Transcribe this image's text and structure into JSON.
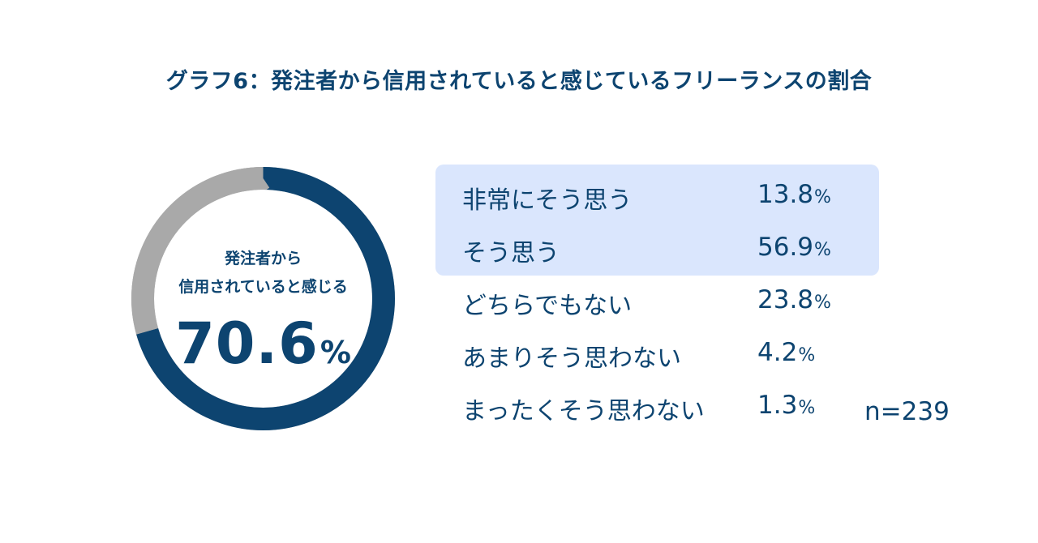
{
  "title": "グラフ6：発注者から信用されていると感じているフリーランスの割合",
  "center": {
    "line1": "発注者から",
    "line2": "信用されていると感じる",
    "value": "70.6",
    "unit": "%"
  },
  "n_label": "n=239",
  "colors": {
    "primary": "#0d4470",
    "gray": "#a9a9a9",
    "highlight": "#dae6fd"
  },
  "legend": [
    {
      "label": "非常にそう思う",
      "value": "13.8",
      "unit": "%"
    },
    {
      "label": "そう思う",
      "value": "56.9",
      "unit": "%"
    },
    {
      "label": "どちらでもない",
      "value": "23.8",
      "unit": "%"
    },
    {
      "label": "あまりそう思わない",
      "value": "4.2",
      "unit": "%"
    },
    {
      "label": "まったくそう思わない",
      "value": "1.3",
      "unit": "%"
    }
  ],
  "chart_data": {
    "type": "pie",
    "title": "グラフ6：発注者から信用されていると感じているフリーランスの割合",
    "categories": [
      "非常にそう思う",
      "そう思う",
      "どちらでもない",
      "あまりそう思わない",
      "まったくそう思わない"
    ],
    "values": [
      13.8,
      56.9,
      23.8,
      4.2,
      1.3
    ],
    "donut": {
      "highlighted_share": 70.6,
      "remaining_share": 29.4,
      "highlighted_color": "#0d4470",
      "remaining_color": "#a9a9a9"
    },
    "n": 239
  }
}
